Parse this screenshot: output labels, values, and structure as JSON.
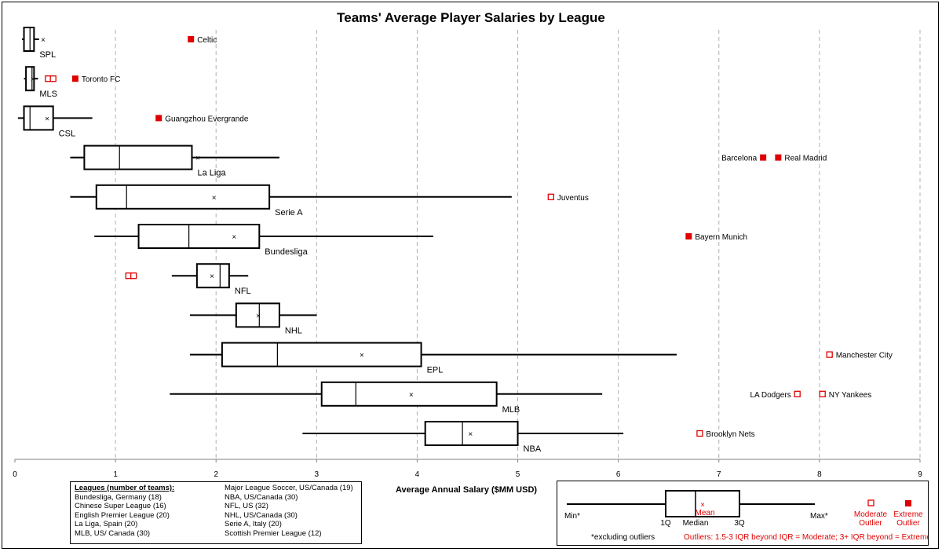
{
  "chart_data": {
    "type": "boxplot",
    "title": "Teams' Average Player Salaries by League",
    "xlabel": "Average Annual Salary  ($MM USD)",
    "xlim": [
      0,
      9
    ],
    "xticks": [
      "0",
      "1",
      "2",
      "3",
      "4",
      "5",
      "6",
      "7",
      "8",
      "9"
    ],
    "grid": "vertical dashed",
    "series": [
      {
        "name": "SPL",
        "min": 0.07,
        "q1": 0.09,
        "median": 0.15,
        "q3": 0.19,
        "max": 0.24,
        "mean": 0.28,
        "moderate_outliers": [],
        "extreme_outliers": [
          {
            "label": "Celtic",
            "value": 1.75
          }
        ]
      },
      {
        "name": "MLS",
        "min": 0.09,
        "q1": 0.11,
        "median": 0.17,
        "q3": 0.19,
        "max": 0.23,
        "mean": 0.18,
        "moderate_outliers": [
          {
            "label": "",
            "value": 0.33
          },
          {
            "label": "",
            "value": 0.38
          }
        ],
        "extreme_outliers": [
          {
            "label": "Toronto FC",
            "value": 0.6
          }
        ]
      },
      {
        "name": "CSL",
        "min": 0.03,
        "q1": 0.09,
        "median": 0.15,
        "q3": 0.38,
        "max": 0.77,
        "mean": 0.32,
        "moderate_outliers": [],
        "extreme_outliers": [
          {
            "label": "Guangzhou Evergrande",
            "value": 1.43
          }
        ]
      },
      {
        "name": "La Liga",
        "min": 0.55,
        "q1": 0.69,
        "median": 1.04,
        "q3": 1.76,
        "max": 2.63,
        "mean": 1.82,
        "moderate_outliers": [],
        "extreme_outliers": [
          {
            "label": "Barcelona",
            "value": 7.44
          },
          {
            "label": "Real Madrid",
            "value": 7.59
          }
        ]
      },
      {
        "name": "Serie A",
        "min": 0.55,
        "q1": 0.81,
        "median": 1.11,
        "q3": 2.53,
        "max": 4.94,
        "mean": 1.98,
        "moderate_outliers": [
          {
            "label": "Juventus",
            "value": 5.33
          }
        ],
        "extreme_outliers": []
      },
      {
        "name": "Bundesliga",
        "min": 0.79,
        "q1": 1.23,
        "median": 1.73,
        "q3": 2.43,
        "max": 4.16,
        "mean": 2.18,
        "moderate_outliers": [],
        "extreme_outliers": [
          {
            "label": "Bayern Munich",
            "value": 6.7
          }
        ]
      },
      {
        "name": "NFL",
        "min": 1.56,
        "q1": 1.81,
        "median": 2.04,
        "q3": 2.13,
        "max": 2.32,
        "mean": 1.96,
        "moderate_outliers": [
          {
            "label": "",
            "value": 1.13
          },
          {
            "label": "",
            "value": 1.18
          }
        ],
        "extreme_outliers": []
      },
      {
        "name": "NHL",
        "min": 1.74,
        "q1": 2.2,
        "median": 2.43,
        "q3": 2.63,
        "max": 3.0,
        "mean": 2.42,
        "moderate_outliers": [],
        "extreme_outliers": []
      },
      {
        "name": "EPL",
        "min": 1.74,
        "q1": 2.06,
        "median": 2.61,
        "q3": 4.04,
        "max": 6.58,
        "mean": 3.45,
        "moderate_outliers": [
          {
            "label": "Manchester City",
            "value": 8.1
          }
        ],
        "extreme_outliers": []
      },
      {
        "name": "MLB",
        "min": 1.54,
        "q1": 3.05,
        "median": 3.39,
        "q3": 4.79,
        "max": 5.84,
        "mean": 3.94,
        "moderate_outliers": [
          {
            "label": "LA Dodgers",
            "value": 7.78
          },
          {
            "label": "NY Yankees",
            "value": 8.03
          }
        ],
        "extreme_outliers": []
      },
      {
        "name": "NBA",
        "min": 2.86,
        "q1": 4.08,
        "median": 4.45,
        "q3": 5.0,
        "max": 6.05,
        "mean": 4.53,
        "moderate_outliers": [
          {
            "label": "Brooklyn Nets",
            "value": 6.81
          }
        ],
        "extreme_outliers": []
      }
    ]
  },
  "leagues_box": {
    "heading": "Leagues (number of teams):",
    "col1": [
      "Bundesliga, Germany (18)",
      "Chinese Super League (16)",
      "English Premier League (20)",
      "La Liga, Spain (20)",
      "MLB, US/ Canada (30)"
    ],
    "col2": [
      "Major League Soccer, US/Canada (19)",
      "NBA, US/Canada (30)",
      "NFL, US (32)",
      "NHL, US/Canada (30)",
      "Serie A, Italy (20)",
      "Scottish Premier League (12)"
    ]
  },
  "legend": {
    "min": "Min*",
    "max": "Max*",
    "q1": "1Q",
    "median": "Median",
    "q3": "3Q",
    "mean": "Mean",
    "moderate_line1": "Moderate",
    "moderate_line2": "Outlier",
    "extreme_line1": "Extreme",
    "extreme_line2": "Outlier",
    "footnote": "*excluding outliers",
    "outliers_label": "Outliers:",
    "outliers_text": " 1.5-3 IQR beyond IQR = Moderate; 3+ IQR beyond = Extreme"
  },
  "colors": {
    "outlier": "#e00000",
    "box": "#000000",
    "grid": "#b0b0b0"
  }
}
